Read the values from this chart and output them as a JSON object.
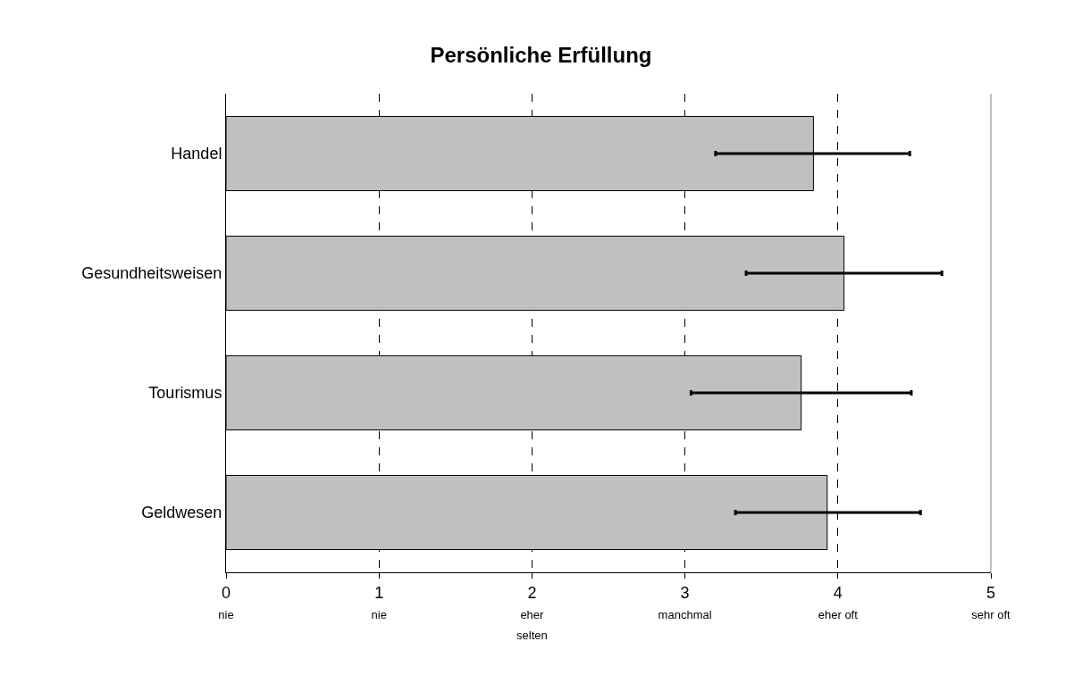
{
  "chart_data": {
    "type": "bar",
    "title": "Persönliche Erfüllung",
    "orientation": "horizontal",
    "categories": [
      "Handel",
      "Gesundheitsweisen",
      "Tourismus",
      "Geldwesen"
    ],
    "values": [
      3.84,
      4.04,
      3.76,
      3.93
    ],
    "color": "#c0c0c0",
    "errors": [
      [
        3.2,
        4.47
      ],
      [
        3.4,
        4.68
      ],
      [
        3.04,
        4.48
      ],
      [
        3.33,
        4.54
      ]
    ],
    "xlim": [
      0,
      5
    ],
    "xticks": [
      {
        "value": 0,
        "label": "0\nnie"
      },
      {
        "value": 1,
        "label": "1\nnie"
      },
      {
        "value": 2,
        "label": "2\neher\nselten"
      },
      {
        "value": 3,
        "label": "3\nmanchmal"
      },
      {
        "value": 4,
        "label": "4\neher oft"
      },
      {
        "value": 5,
        "label": "5\nsehr oft"
      }
    ],
    "grid": "x",
    "line_style": "dashed"
  }
}
